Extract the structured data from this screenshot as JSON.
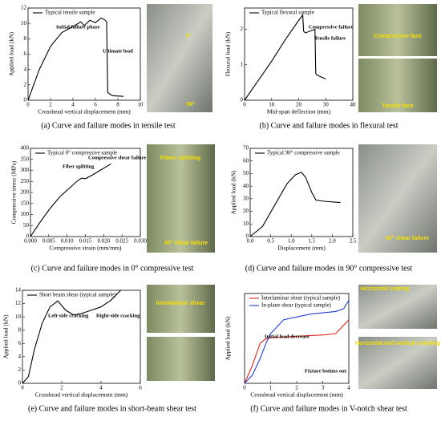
{
  "chart_data": [
    {
      "type": "line",
      "caption": "(a) Curve and failure modes in tensile test",
      "x_label": "Crosshead vertical displacement (mm)",
      "y_label": "Applied load (kN)",
      "xlim": [
        0,
        10
      ],
      "xticks": [
        0,
        2,
        4,
        6,
        8,
        10
      ],
      "ylim": [
        0,
        12
      ],
      "yticks": [
        0,
        2,
        4,
        6,
        8,
        10,
        12
      ],
      "x": [
        0,
        0.5,
        1,
        2,
        3,
        4,
        4.7,
        5,
        5.5,
        6,
        6.5,
        6.8,
        7,
        7.1,
        7.5,
        8.5
      ],
      "series": [
        {
          "name": "Typical tensile sample",
          "color": "#000000",
          "values": [
            0,
            2,
            4,
            7,
            8.8,
            9.6,
            10.2,
            9.7,
            10.4,
            10.1,
            10.7,
            10.5,
            10.2,
            1,
            0.6,
            0.5
          ]
        }
      ],
      "annotations": [
        "Initial failure phase",
        "Ultimate load"
      ],
      "photo_labels": [
        "0°",
        "90°"
      ]
    },
    {
      "type": "line",
      "caption": "(b) Curve and failure modes in flexural test",
      "x_label": "Mid-span deflection (mm)",
      "y_label": "Flexural load (kN)",
      "xlim": [
        0,
        40
      ],
      "xticks": [
        0,
        10,
        20,
        30,
        40
      ],
      "ylim": [
        0,
        2.6
      ],
      "yticks": [
        0,
        1,
        2
      ],
      "x": [
        0,
        5,
        10,
        15,
        20,
        21.5,
        21.8,
        22.5,
        26,
        26.3,
        27,
        30
      ],
      "series": [
        {
          "name": "Typical flexural sample",
          "color": "#000000",
          "values": [
            0,
            0.55,
            1.1,
            1.7,
            2.25,
            2.4,
            1.95,
            1.9,
            2.0,
            0.75,
            0.7,
            0.6
          ]
        }
      ],
      "annotations": [
        "Compressive failure",
        "Tensile failure"
      ],
      "photo_labels": [
        "Compressive face",
        "Tensile face"
      ]
    },
    {
      "type": "line",
      "caption": "(c) Curve and failure modes in 0° compressive test",
      "x_label": "Compressive strain (mm/mm)",
      "y_label": "Compressive stress (MPa)",
      "xlim": [
        0,
        0.03
      ],
      "xticks": [
        {
          "value": 0,
          "label": "0.000"
        },
        {
          "value": 0.005,
          "label": "0.005"
        },
        {
          "value": 0.01,
          "label": "0.010"
        },
        {
          "value": 0.015,
          "label": "0.015"
        },
        {
          "value": 0.02,
          "label": "0.020"
        },
        {
          "value": 0.025,
          "label": "0.025"
        },
        {
          "value": 0.03,
          "label": "0.030"
        }
      ],
      "ylim": [
        0,
        400
      ],
      "yticks": [
        0,
        50,
        100,
        150,
        200,
        250,
        300,
        350,
        400
      ],
      "x": [
        0,
        0.002,
        0.005,
        0.008,
        0.011,
        0.013,
        0.014,
        0.015,
        0.017,
        0.02,
        0.022
      ],
      "series": [
        {
          "name": "Typical 0° compressive sample",
          "color": "#000000",
          "values": [
            0,
            50,
            120,
            180,
            225,
            255,
            265,
            262,
            280,
            310,
            330
          ]
        }
      ],
      "annotations": [
        "Fiber splitting",
        "Compressive shear failure"
      ],
      "photo_labels": [
        "Fibers splitting",
        "45° shear failure"
      ]
    },
    {
      "type": "line",
      "caption": "(d) Curve and failure modes in 90° compressive test",
      "x_label": "Displacement (mm)",
      "y_label": "Applied load (kN)",
      "xlim": [
        0,
        2.5
      ],
      "xticks": [
        {
          "value": 0,
          "label": "0.0"
        },
        0.5,
        {
          "value": 1,
          "label": "1.0"
        },
        1.5,
        {
          "value": 2,
          "label": "2.0"
        },
        2.5
      ],
      "ylim": [
        0,
        70
      ],
      "yticks": [
        0,
        10,
        20,
        30,
        40,
        50,
        60,
        70
      ],
      "x": [
        0,
        0.3,
        0.6,
        0.9,
        1.1,
        1.25,
        1.35,
        1.5,
        1.6,
        1.8,
        2.0,
        2.2
      ],
      "series": [
        {
          "name": "Typical 90° compressive sample",
          "color": "#000000",
          "values": [
            0,
            8,
            25,
            42,
            49,
            51,
            47,
            35,
            29,
            28,
            27.5,
            27
          ]
        }
      ],
      "annotations": [],
      "photo_labels": [
        "45° shear failure"
      ]
    },
    {
      "type": "line",
      "caption": "(e) Curve and failure modes in short-beam shear test",
      "x_label": "Crosshead vertical displacement (mm)",
      "y_label": "Applied load (kN)",
      "xlim": [
        0,
        6
      ],
      "xticks": [
        0,
        2,
        4,
        6
      ],
      "ylim": [
        0,
        14
      ],
      "yticks": [
        0,
        2,
        4,
        6,
        8,
        10,
        12,
        14
      ],
      "x": [
        0,
        0.3,
        0.6,
        1,
        1.4,
        1.8,
        2.2,
        2.6,
        3,
        3.5,
        4,
        4.5,
        5
      ],
      "series": [
        {
          "name": "Short beam shear (typical sample)",
          "color": "#000000",
          "values": [
            0,
            1,
            5,
            9,
            11.5,
            12.4,
            11,
            10.3,
            10.5,
            11,
            11.5,
            12.5,
            14
          ]
        }
      ],
      "annotations": [
        "Left-side cracking",
        "Right-side cracking"
      ],
      "photo_labels": [
        "Interlaminar shear"
      ]
    },
    {
      "type": "line",
      "caption": "(f) Curve and failure modes in V-notch shear test",
      "x_label": "Crosshead vertical displacement (mm)",
      "y_label": "Applied load (kN)",
      "xlim": [
        0,
        4
      ],
      "xticks": [
        0,
        1,
        2,
        3,
        4
      ],
      "ylim": [
        0,
        6.5
      ],
      "x": [
        0,
        0.3,
        0.6,
        0.8,
        1.0,
        1.5,
        2.0,
        2.5,
        3.0,
        3.5,
        3.8,
        4.0
      ],
      "series": [
        {
          "name": "Interlaminar shear (typical sample)",
          "color": "#e8211b",
          "values": [
            0,
            1.3,
            2.9,
            3.2,
            3.3,
            3.35,
            3.4,
            3.45,
            3.5,
            3.6,
            4.2,
            4.6
          ]
        },
        {
          "name": "In-plane shear (typical sample)",
          "color": "#1f3fd6",
          "values": [
            0,
            0.6,
            1.8,
            2.8,
            3.6,
            4.6,
            4.8,
            5.0,
            5.1,
            5.2,
            5.4,
            6.0
          ]
        }
      ],
      "annotations": [
        "Initial load decrease",
        "Fixture bottms out"
      ],
      "photo_labels": [
        "Horizontal craking",
        "Horizontal and vertical cracking"
      ]
    }
  ]
}
